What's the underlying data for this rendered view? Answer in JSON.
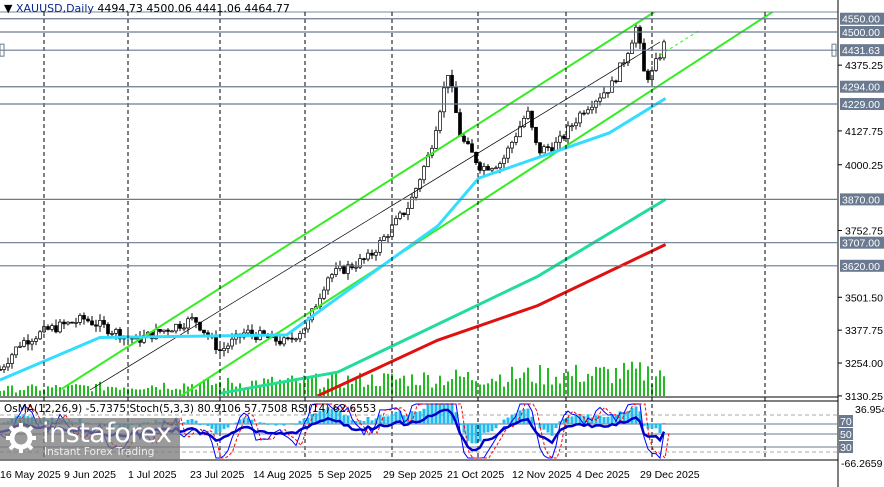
{
  "header": {
    "symbol_label": "XAUUSD,Daily",
    "ohlc": "4494.73 4500.06 4441.06 4464.77",
    "menu_icon": "triangle-down-icon"
  },
  "oscillator_legend": "OsMA(12,26,9) -5.7375  Stoch(5,3,3) 80.9106 57.7508  RSI(14) 62.6553",
  "watermark": {
    "brand": "instaforex",
    "tagline": "Instant Forex Trading"
  },
  "chart_data": {
    "type": "candlestick",
    "symbol": "XAUUSD",
    "timeframe": "Daily",
    "ylim": [
      3130.25,
      4560
    ],
    "y_ticks": [
      "4375.25",
      "4127.75",
      "4000.25",
      "3752.75",
      "3501.50",
      "3377.75",
      "3254.00",
      "3130.25"
    ],
    "level_labels": [
      "4550.00",
      "4500.00",
      "4431.63",
      "4294.00",
      "4229.00",
      "3870.00",
      "3707.00",
      "3620.00"
    ],
    "x_ticks": [
      "16 May 2025",
      "9 Jun 2025",
      "1 Jul 2025",
      "23 Jul 2025",
      "14 Aug 2025",
      "5 Sep 2025",
      "29 Sep 2025",
      "21 Oct 2025",
      "12 Nov 2025",
      "4 Dec 2025",
      "29 Dec 2025"
    ],
    "close_path": [
      [
        "2025-04-23",
        3230
      ],
      [
        "2025-05-01",
        3330
      ],
      [
        "2025-05-12",
        3380
      ],
      [
        "2025-05-26",
        3420
      ],
      [
        "2025-06-15",
        3340
      ],
      [
        "2025-07-08",
        3420
      ],
      [
        "2025-07-18",
        3300
      ],
      [
        "2025-07-28",
        3370
      ],
      [
        "2025-08-13",
        3330
      ],
      [
        "2025-08-21",
        3400
      ],
      [
        "2025-08-29",
        3580
      ],
      [
        "2025-09-14",
        3650
      ],
      [
        "2025-09-30",
        3850
      ],
      [
        "2025-10-08",
        4050
      ],
      [
        "2025-10-15",
        4350
      ],
      [
        "2025-10-20",
        4100
      ],
      [
        "2025-10-28",
        3990
      ],
      [
        "2025-11-05",
        4010
      ],
      [
        "2025-11-15",
        4200
      ],
      [
        "2025-11-19",
        4050
      ],
      [
        "2025-11-27",
        4080
      ],
      [
        "2025-12-07",
        4210
      ],
      [
        "2025-12-18",
        4300
      ],
      [
        "2025-12-23",
        4400
      ],
      [
        "2025-12-28",
        4530
      ],
      [
        "2025-12-30",
        4350
      ],
      [
        "2026-01-02",
        4330
      ],
      [
        "2026-01-08",
        4465
      ]
    ],
    "moving_averages": [
      {
        "color": "#33ddff",
        "points": [
          [
            "2025-04-23",
            3190
          ],
          [
            "2025-06-01",
            3350
          ],
          [
            "2025-08-13",
            3360
          ],
          [
            "2025-09-02",
            3500
          ],
          [
            "2025-10-11",
            3770
          ],
          [
            "2025-10-27",
            3950
          ],
          [
            "2025-11-08",
            3990
          ],
          [
            "2025-12-17",
            4120
          ],
          [
            "2026-01-08",
            4250
          ]
        ]
      },
      {
        "color": "#22dd99",
        "points": [
          [
            "2025-07-18",
            3140
          ],
          [
            "2025-09-02",
            3220
          ],
          [
            "2025-10-11",
            3400
          ],
          [
            "2025-11-19",
            3580
          ],
          [
            "2026-01-08",
            3870
          ]
        ]
      },
      {
        "color": "#e01010",
        "points": [
          [
            "2025-08-25",
            3130
          ],
          [
            "2025-10-11",
            3340
          ],
          [
            "2025-11-19",
            3470
          ],
          [
            "2026-01-08",
            3700
          ]
        ]
      }
    ],
    "channel": {
      "color": "#33ee22",
      "upper": [
        [
          "2025-05-17",
          3156
        ],
        [
          "2026-01-08",
          4602
        ]
      ],
      "lower": [
        [
          "2025-07-02",
          3126
        ],
        [
          "2026-02-23",
          4602
        ]
      ]
    },
    "oscillator": {
      "ylim": [
        -66.2659,
        36.9548
      ],
      "top_label": "36.9548",
      "bottom_label": "-66.2659",
      "level_labels": [
        "70",
        "50",
        "30"
      ]
    },
    "colors": {
      "level_line": "#6a7a90",
      "label_box": "#6a7a90",
      "volume": "#22bb22",
      "osma": "#22bbee",
      "stoch": "#0000ff",
      "signal": "#ff0000",
      "rsi": "#0000cc"
    }
  }
}
